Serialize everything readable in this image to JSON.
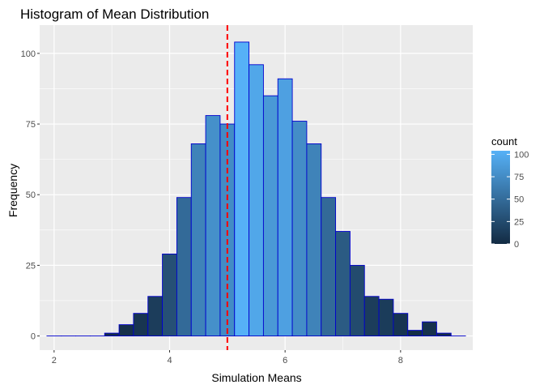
{
  "chart_data": {
    "type": "bar",
    "title": "Histogram of Mean Distribution",
    "xlabel": "Simulation Means",
    "ylabel": "Frequency",
    "xlim": [
      1.75,
      9.25
    ],
    "ylim": [
      -5,
      110
    ],
    "xticks": [
      2,
      4,
      6,
      8
    ],
    "yticks": [
      0,
      25,
      50,
      75,
      100
    ],
    "grid": true,
    "bin_width": 0.25,
    "bins": [
      {
        "x": 2.0,
        "count": 0
      },
      {
        "x": 2.25,
        "count": 0
      },
      {
        "x": 2.5,
        "count": 0
      },
      {
        "x": 2.75,
        "count": 0
      },
      {
        "x": 3.0,
        "count": 1
      },
      {
        "x": 3.25,
        "count": 4
      },
      {
        "x": 3.5,
        "count": 8
      },
      {
        "x": 3.75,
        "count": 14
      },
      {
        "x": 4.0,
        "count": 29
      },
      {
        "x": 4.25,
        "count": 49
      },
      {
        "x": 4.5,
        "count": 68
      },
      {
        "x": 4.75,
        "count": 78
      },
      {
        "x": 5.0,
        "count": 75
      },
      {
        "x": 5.25,
        "count": 104
      },
      {
        "x": 5.5,
        "count": 96
      },
      {
        "x": 5.75,
        "count": 85
      },
      {
        "x": 6.0,
        "count": 91
      },
      {
        "x": 6.25,
        "count": 76
      },
      {
        "x": 6.5,
        "count": 68
      },
      {
        "x": 6.75,
        "count": 49
      },
      {
        "x": 7.0,
        "count": 37
      },
      {
        "x": 7.25,
        "count": 25
      },
      {
        "x": 7.5,
        "count": 14
      },
      {
        "x": 7.75,
        "count": 13
      },
      {
        "x": 8.0,
        "count": 8
      },
      {
        "x": 8.25,
        "count": 2
      },
      {
        "x": 8.5,
        "count": 5
      },
      {
        "x": 8.75,
        "count": 1
      },
      {
        "x": 9.0,
        "count": 0
      }
    ],
    "mean_line": {
      "x": 5.0,
      "color": "#ff0000",
      "style": "dashed"
    },
    "bar_outline_color": "#0000cd",
    "fill_scale": {
      "low": "#132b43",
      "high": "#56b1f7",
      "min": 0,
      "max": 104
    },
    "legend": {
      "title": "count",
      "placement": "right",
      "labels": [
        "100",
        "75",
        "50",
        "25",
        "0"
      ],
      "values": [
        100,
        75,
        50,
        25,
        0
      ]
    }
  }
}
